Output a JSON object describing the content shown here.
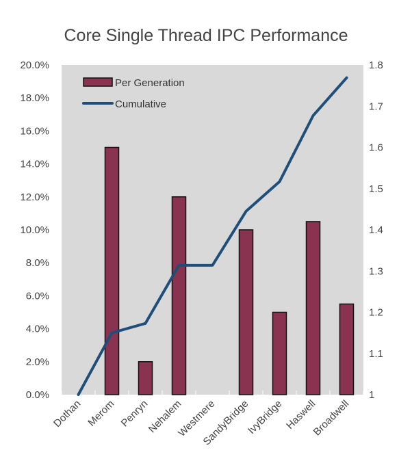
{
  "chart_data": {
    "type": "bar",
    "title": "Core Single Thread IPC Performance",
    "xlabel": "",
    "ylabel": "",
    "categories": [
      "Dothan",
      "Merom",
      "Penryn",
      "Nehalem",
      "Westmere",
      "SandyBridge",
      "IvyBridge",
      "Haswell",
      "Broadwell"
    ],
    "series": [
      {
        "name": "Per Generation",
        "type": "bar",
        "axis": "left",
        "values": [
          0.0,
          15.0,
          2.0,
          12.0,
          0.0,
          10.0,
          5.0,
          10.5,
          5.5
        ]
      },
      {
        "name": "Cumulative",
        "type": "line",
        "axis": "right",
        "values": [
          1.0,
          1.15,
          1.173,
          1.314,
          1.314,
          1.445,
          1.517,
          1.677,
          1.769
        ]
      }
    ],
    "ylim": [
      0,
      20
    ],
    "y2lim": [
      1,
      1.8
    ],
    "y_ticks": [
      "0.0%",
      "2.0%",
      "4.0%",
      "6.0%",
      "8.0%",
      "10.0%",
      "12.0%",
      "14.0%",
      "16.0%",
      "18.0%",
      "20.0%"
    ],
    "y2_ticks": [
      "1",
      "1.1",
      "1.2",
      "1.3",
      "1.4",
      "1.5",
      "1.6",
      "1.7",
      "1.8"
    ],
    "legend": "top-left",
    "grid": false,
    "colors": {
      "bar_fill": "#8a3350",
      "bar_stroke": "#111111",
      "line": "#1f4e79",
      "plot_background": "#d9d9d9",
      "text": "#444444"
    }
  }
}
